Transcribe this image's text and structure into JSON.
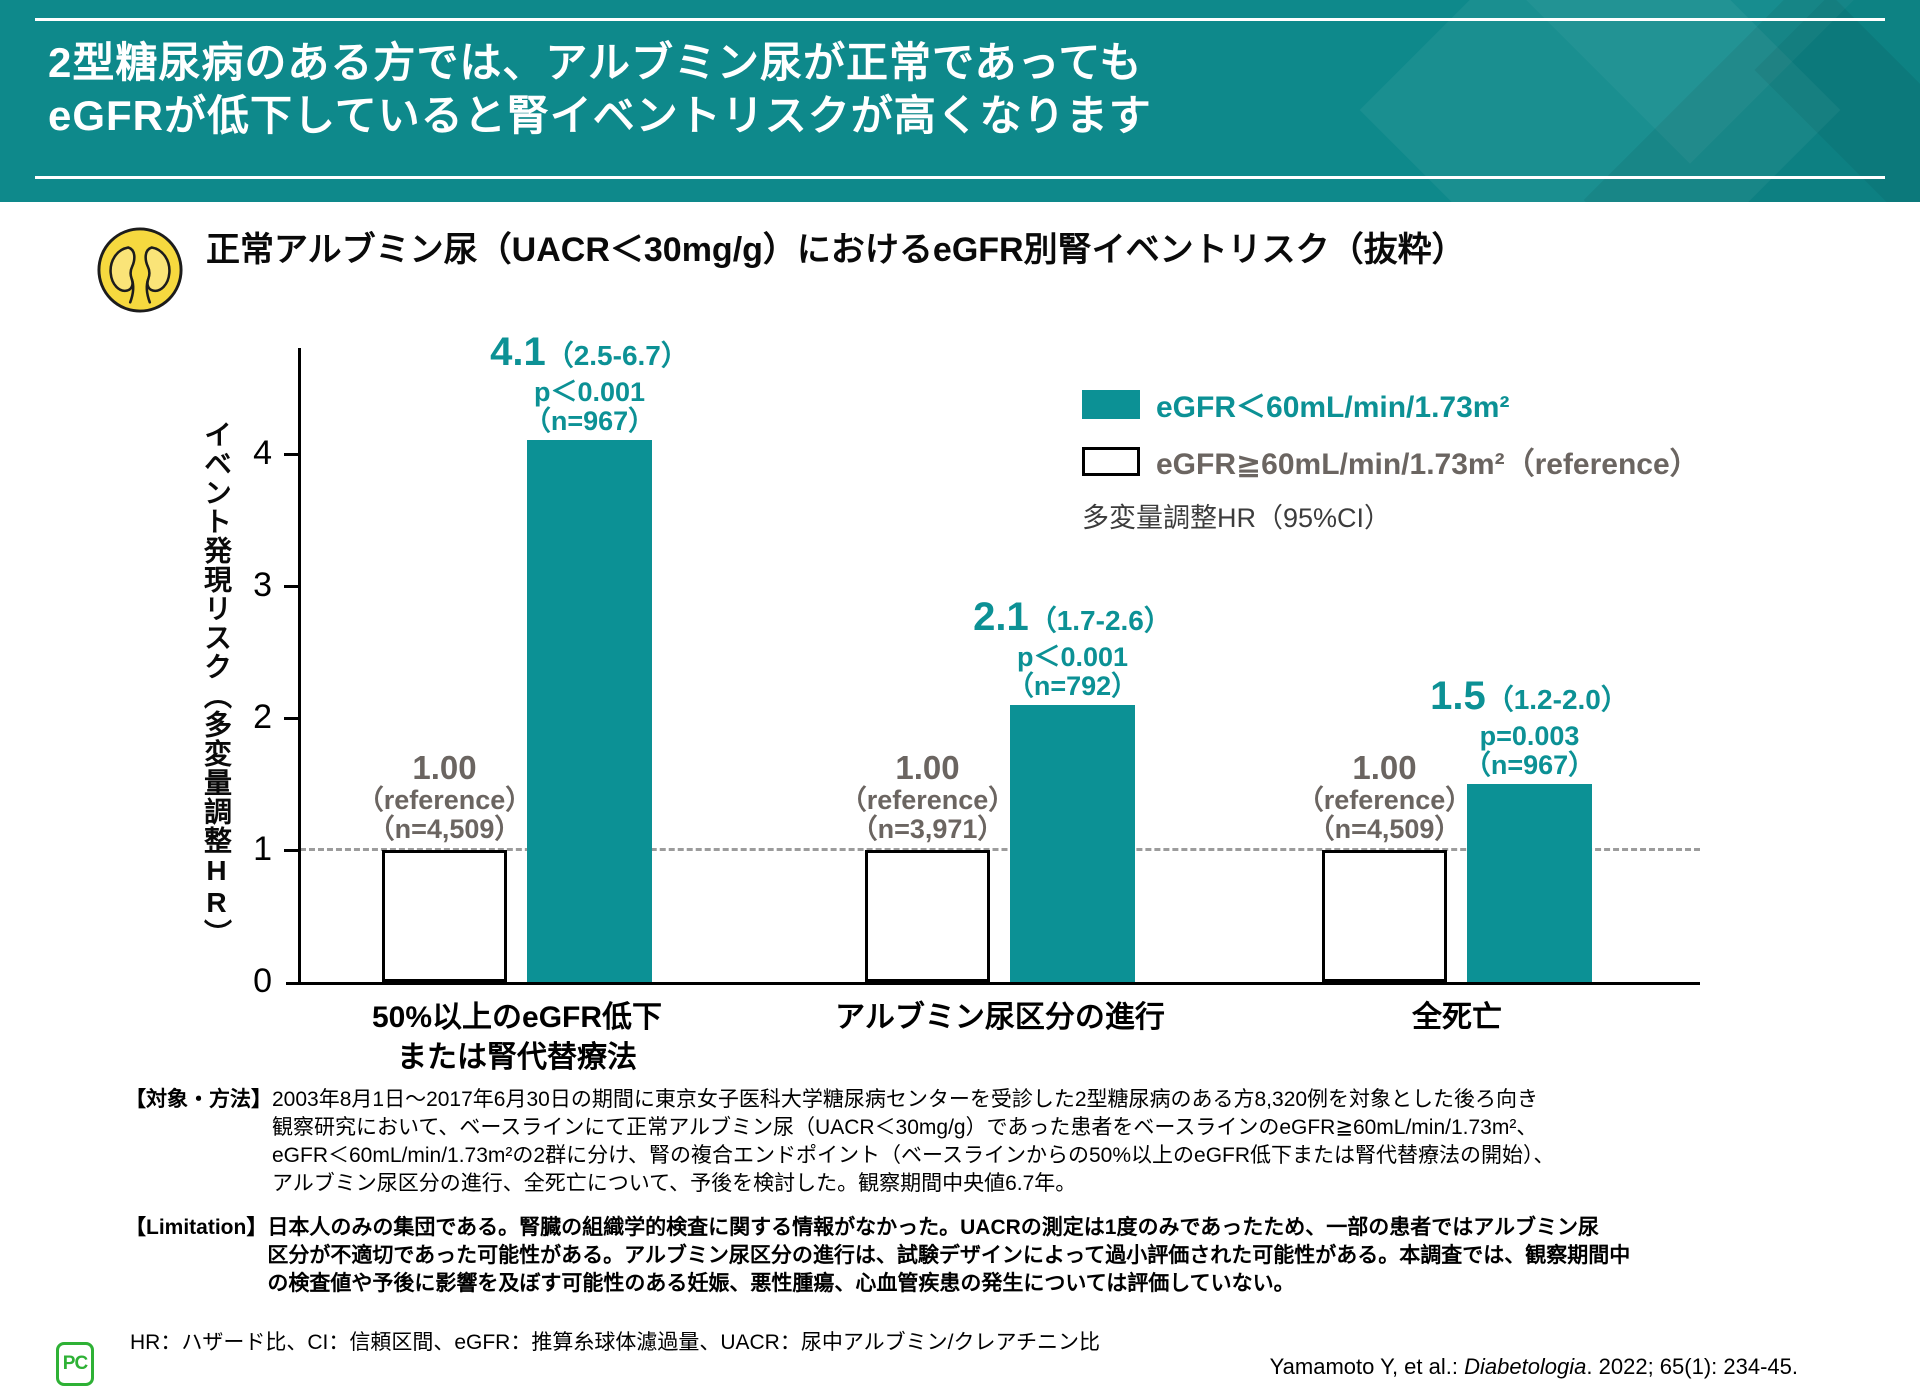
{
  "header": {
    "title_line1": "2型糖尿病のある方では、アルブミン尿が正常であっても",
    "title_line2": "eGFRが低下していると腎イベントリスクが高くなります"
  },
  "chart_title": "正常アルブミン尿（UACR＜30mg/g）におけるeGFR別腎イベントリスク（抜粋）",
  "legend": {
    "item1": "eGFR＜60mL/min/1.73m²",
    "item2": "eGFR≧60mL/min/1.73m²（reference）",
    "note": "多変量調整HR（95%CI）"
  },
  "colors": {
    "header_teal": "#0E898B",
    "accent_teal": "#0C9195",
    "reference_gray": "#6B6561",
    "kidney_yellow": "#F6D93F",
    "logo_green": "#2EB135",
    "dashed_line": "#9C9C9C"
  },
  "chart_data": {
    "type": "bar",
    "title": "正常アルブミン尿（UACR＜30mg/g）におけるeGFR別腎イベントリスク（抜粋）",
    "ylabel": "イベント発現リスク（多変量調整HR）",
    "xlabel": "",
    "ylim": [
      0,
      4.8
    ],
    "yticks": [
      0,
      1,
      2,
      3,
      4
    ],
    "reference_line_y": 1,
    "grid": false,
    "legend_position": "top-right",
    "categories": [
      "50%以上のeGFR低下\nまたは腎代替療法",
      "アルブミン尿区分の進行",
      "全死亡"
    ],
    "series": [
      {
        "name": "eGFR≧60mL/min/1.73m²（reference）",
        "color": "#FFFFFF",
        "values": [
          1.0,
          1.0,
          1.0
        ]
      },
      {
        "name": "eGFR＜60mL/min/1.73m²",
        "color": "#0C9195",
        "values": [
          4.1,
          2.1,
          1.5
        ]
      }
    ],
    "groups": [
      {
        "category": "50%以上のeGFR低下\nまたは腎代替療法",
        "ref": {
          "value": 1.0,
          "label": "1.00",
          "sub": "（reference）",
          "n": "（n=4,509）"
        },
        "test": {
          "value": 4.1,
          "label": "4.1",
          "ci": "（2.5-6.7）",
          "p": "p＜0.001",
          "n": "（n=967）"
        }
      },
      {
        "category": "アルブミン尿区分の進行",
        "ref": {
          "value": 1.0,
          "label": "1.00",
          "sub": "（reference）",
          "n": "（n=3,971）"
        },
        "test": {
          "value": 2.1,
          "label": "2.1",
          "ci": "（1.7-2.6）",
          "p": "p＜0.001",
          "n": "（n=792）"
        }
      },
      {
        "category": "全死亡",
        "ref": {
          "value": 1.0,
          "label": "1.00",
          "sub": "（reference）",
          "n": "（n=4,509）"
        },
        "test": {
          "value": 1.5,
          "label": "1.5",
          "ci": "（1.2-2.0）",
          "p": "p=0.003",
          "n": "（n=967）"
        }
      }
    ]
  },
  "footnotes": {
    "methods_label": "【対象・方法】",
    "methods_body": "2003年8月1日～2017年6月30日の期間に東京女子医科大学糖尿病センターを受診した2型糖尿病のある方8,320例を対象とした後ろ向き\n観察研究において、ベースラインにて正常アルブミン尿（UACR＜30mg/g）であった患者をベースラインのeGFR≧60mL/min/1.73m²、\neGFR＜60mL/min/1.73m²の2群に分け、腎の複合エンドポイント（ベースラインからの50%以上のeGFR低下または腎代替療法の開始）、\nアルブミン尿区分の進行、全死亡について、予後を検討した。観察期間中央値6.7年。",
    "limitation_label": "【Limitation】",
    "limitation_body": "日本人のみの集団である。腎臓の組織学的検査に関する情報がなかった。UACRの測定は1度のみであったため、一部の患者ではアルブミン尿\n区分が不適切であった可能性がある。アルブミン尿区分の進行は、試験デザインによって過小評価された可能性がある。本調査では、観察期間中\nの検査値や予後に影響を及ぼす可能性のある妊娠、悪性腫瘍、心血管疾患の発生については評価していない。",
    "abbreviations": "HR：ハザード比、CI：信頼区間、eGFR：推算糸球体濾過量、UACR：尿中アルブミン/クレアチニン比"
  },
  "citation": {
    "pre": "Yamamoto Y, et al.: ",
    "journal": "Diabetologia",
    "post": ". 2022; 65(1): 234-45."
  },
  "logo": {
    "text": "PC"
  },
  "icons": {
    "kidney_icon": "two kidneys inside yellow circle"
  }
}
